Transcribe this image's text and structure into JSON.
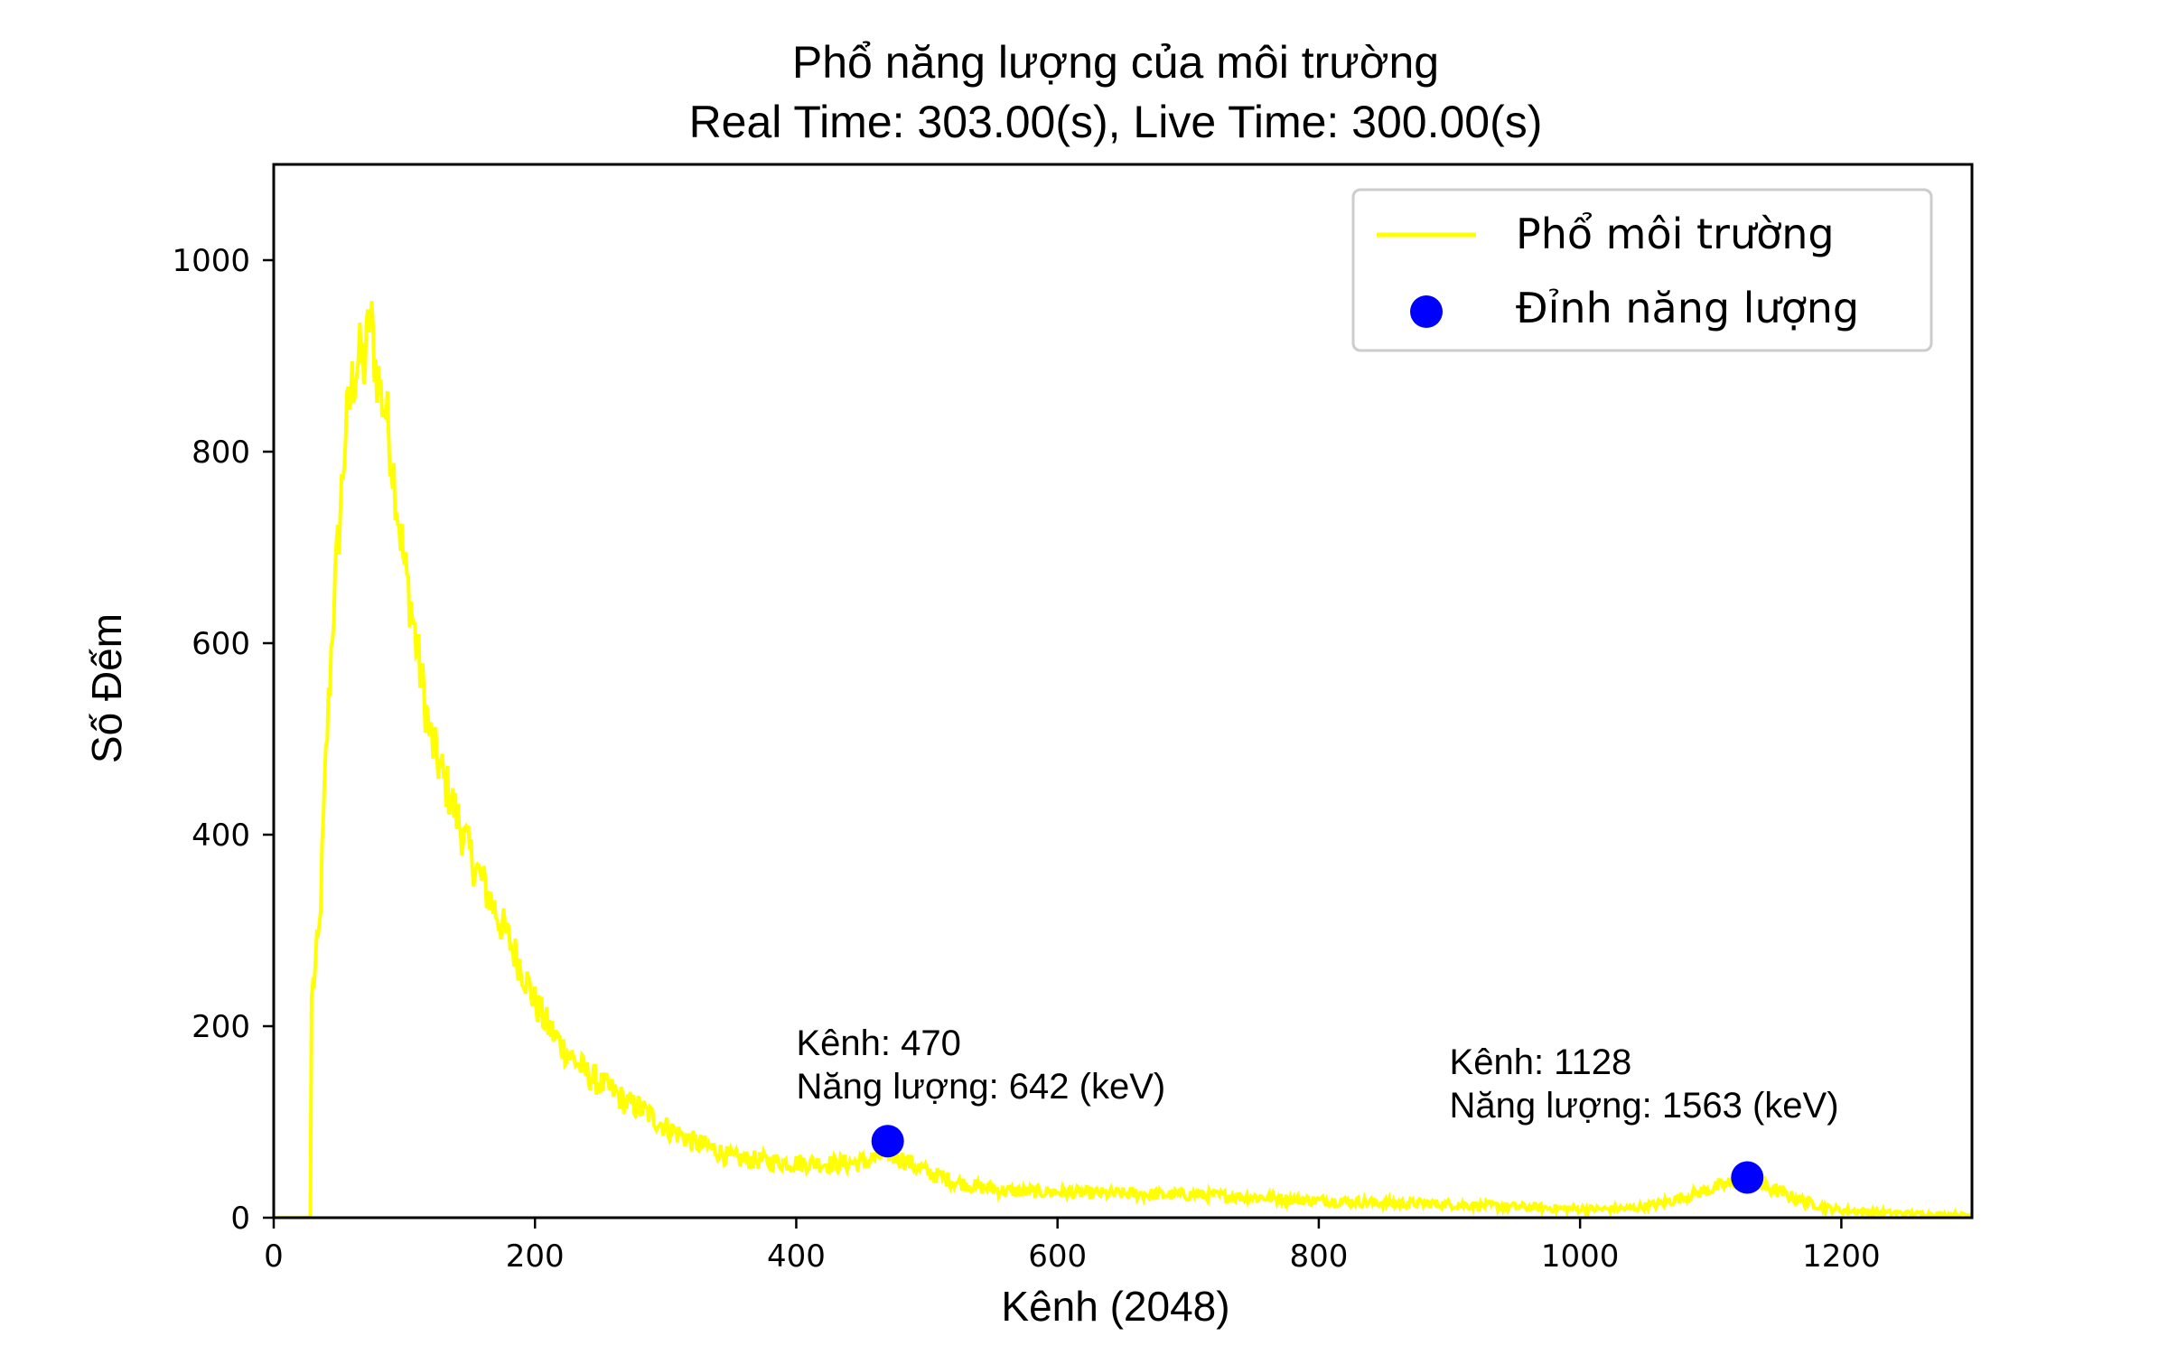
{
  "chart_data": {
    "type": "line",
    "title": "Phổ năng lượng của môi trường",
    "subtitle": "Real Time: 303.00(s), Live Time: 300.00(s)",
    "xlabel": "Kênh (2048)",
    "ylabel": "Số Đếm",
    "xlim": [
      0,
      1300
    ],
    "ylim": [
      0,
      1100
    ],
    "x_ticks": [
      0,
      200,
      400,
      600,
      800,
      1000,
      1200
    ],
    "y_ticks": [
      0,
      200,
      400,
      600,
      800,
      1000
    ],
    "grid": false,
    "legend_position": "top-right",
    "series": [
      {
        "name": "Phổ môi trường",
        "kind": "line",
        "color": "#ffff00",
        "x": [
          0,
          28,
          29,
          30,
          35,
          40,
          45,
          50,
          55,
          60,
          65,
          70,
          73,
          75,
          78,
          82,
          86,
          90,
          95,
          100,
          105,
          110,
          115,
          120,
          130,
          140,
          150,
          160,
          170,
          180,
          190,
          200,
          210,
          220,
          230,
          240,
          250,
          260,
          270,
          280,
          290,
          300,
          320,
          340,
          350,
          370,
          390,
          410,
          430,
          450,
          460,
          470,
          480,
          500,
          520,
          540,
          560,
          580,
          600,
          620,
          640,
          660,
          680,
          700,
          720,
          740,
          760,
          780,
          800,
          820,
          840,
          860,
          880,
          900,
          920,
          940,
          960,
          980,
          1000,
          1020,
          1040,
          1060,
          1080,
          1100,
          1110,
          1120,
          1128,
          1135,
          1150,
          1170,
          1190,
          1200,
          1220,
          1240,
          1260,
          1280,
          1300
        ],
        "y": [
          0,
          0,
          230,
          240,
          300,
          480,
          620,
          720,
          820,
          870,
          900,
          890,
          940,
          930,
          890,
          860,
          840,
          800,
          740,
          680,
          640,
          590,
          545,
          500,
          460,
          420,
          380,
          350,
          320,
          290,
          260,
          225,
          200,
          180,
          165,
          150,
          140,
          132,
          120,
          115,
          105,
          95,
          80,
          70,
          62,
          60,
          58,
          57,
          56,
          58,
          62,
          68,
          62,
          48,
          38,
          32,
          28,
          27,
          27,
          26,
          25,
          25,
          24,
          24,
          23,
          22,
          21,
          19,
          18,
          17,
          16,
          15,
          15,
          14,
          13,
          12,
          11,
          10,
          9,
          9,
          10,
          14,
          22,
          30,
          34,
          38,
          40,
          36,
          28,
          18,
          10,
          8,
          6,
          5,
          4,
          3,
          3
        ]
      },
      {
        "name": "Đỉnh năng lượng",
        "kind": "scatter",
        "color": "#0000ff",
        "x": [
          470,
          1128
        ],
        "y": [
          80,
          42
        ]
      }
    ],
    "annotations": [
      {
        "x": 400,
        "y": 170,
        "lines": [
          "Kênh: 470",
          "Năng lượng: 642 (keV)"
        ]
      },
      {
        "x": 900,
        "y": 150,
        "lines": [
          "Kênh: 1128",
          "Năng lượng: 1563 (keV)"
        ]
      }
    ]
  }
}
